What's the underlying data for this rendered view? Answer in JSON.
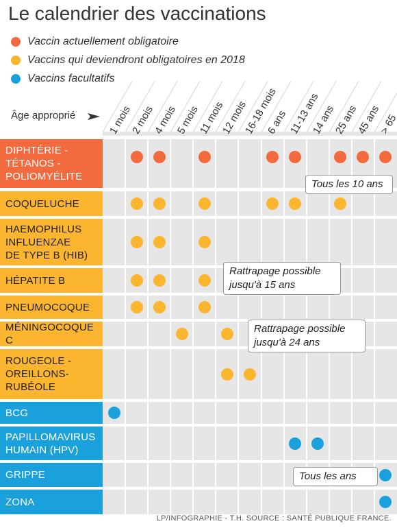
{
  "title": "Le calendrier des vaccinations",
  "legend": [
    {
      "label": "Vaccin actuellement obligatoire",
      "color": "#f26a3d"
    },
    {
      "label": "Vaccins qui deviendront obligatoires en 2018",
      "color": "#fbb52f"
    },
    {
      "label": "Vaccins facultatifs",
      "color": "#1aa1dc"
    }
  ],
  "header_label": "Âge approprié",
  "ages": [
    "1 mois",
    "2 mois",
    "4 mois",
    "5 mois",
    "11 mois",
    "12 mois",
    "16-18 mois",
    "6 ans",
    "11-13 ans",
    "14 ans",
    "25 ans",
    "45 ans",
    "> 65"
  ],
  "rows": [
    {
      "label": "DIPHTÉRIE -\nTÉTANOS -\nPOLIOMYÉLITE",
      "category": "obligatoire",
      "color": "#f26a3d",
      "text_color": "#ffffff",
      "doses": [
        1,
        2,
        4,
        7,
        8,
        10,
        11,
        12
      ]
    },
    {
      "label": "COQUELUCHE",
      "category": "2018",
      "color": "#fbb52f",
      "text_color": "#222222",
      "doses": [
        1,
        2,
        4,
        7,
        8,
        10
      ]
    },
    {
      "label": "HAEMOPHILUS\nINFLUENZAE\nDE TYPE B (HIB)",
      "category": "2018",
      "color": "#fbb52f",
      "text_color": "#222222",
      "doses": [
        1,
        2,
        4
      ]
    },
    {
      "label": "HÉPATITE B",
      "category": "2018",
      "color": "#fbb52f",
      "text_color": "#222222",
      "doses": [
        1,
        2,
        4
      ]
    },
    {
      "label": "PNEUMOCOQUE",
      "category": "2018",
      "color": "#fbb52f",
      "text_color": "#222222",
      "doses": [
        1,
        2,
        4
      ]
    },
    {
      "label": "MÉNINGOCOQUE C",
      "category": "2018",
      "color": "#fbb52f",
      "text_color": "#222222",
      "doses": [
        3,
        5
      ]
    },
    {
      "label": "ROUGEOLE -\nOREILLONS-\nRUBÉOLE",
      "category": "2018",
      "color": "#fbb52f",
      "text_color": "#222222",
      "doses": [
        5,
        6
      ]
    },
    {
      "label": "BCG",
      "category": "facultatif",
      "color": "#1aa1dc",
      "text_color": "#ffffff",
      "doses": [
        0
      ]
    },
    {
      "label": "PAPILLOMAVIRUS\nHUMAIN (HPV)",
      "category": "facultatif",
      "color": "#1aa1dc",
      "text_color": "#ffffff",
      "doses": [
        8,
        9
      ]
    },
    {
      "label": "GRIPPE",
      "category": "facultatif",
      "color": "#1aa1dc",
      "text_color": "#ffffff",
      "doses": [
        12
      ]
    },
    {
      "label": "ZONA",
      "category": "facultatif",
      "color": "#1aa1dc",
      "text_color": "#ffffff",
      "doses": [
        12
      ]
    }
  ],
  "callouts": [
    {
      "text": "Tous les 10 ans",
      "row": 0
    },
    {
      "text": "Rattrapage possible\njusqu'à 15 ans",
      "row": 3
    },
    {
      "text": "Rattrapage possible\njusqu'à 24 ans",
      "row": 5
    },
    {
      "text": "Tous les ans",
      "row": 9
    }
  ],
  "footer": "LP/INFOGRAPHIE - T.H. SOURCE : SANTÉ PUBLIQUE FRANCE."
}
